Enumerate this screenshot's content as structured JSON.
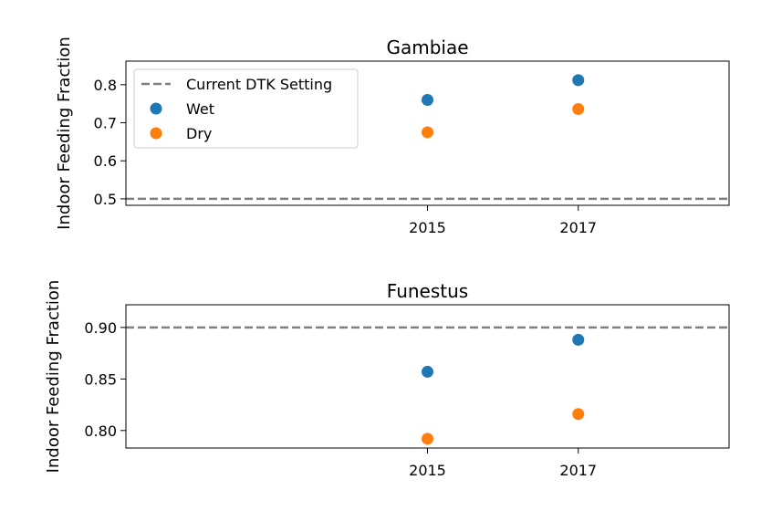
{
  "chart_data": [
    {
      "type": "scatter",
      "title": "Gambiae",
      "xlabel": "",
      "ylabel": "Indoor Feeding Fraction",
      "x_ticks": [
        "2015",
        "2017"
      ],
      "xlim": [
        2011.0,
        2019.0
      ],
      "ylim": [
        0.483,
        0.862
      ],
      "y_ticks": [
        "0.5",
        "0.6",
        "0.7",
        "0.8"
      ],
      "grid": false,
      "legend": {
        "placement": "top-left",
        "entries": [
          "Current DTK Setting",
          "Wet",
          "Dry"
        ]
      },
      "reference_line": {
        "name": "Current DTK Setting",
        "y": 0.5,
        "color": "#808080",
        "style": "dashed"
      },
      "series": [
        {
          "name": "Wet",
          "color": "#1f77b4",
          "x": [
            2015,
            2017
          ],
          "y": [
            0.76,
            0.812
          ]
        },
        {
          "name": "Dry",
          "color": "#ff7f0e",
          "x": [
            2015,
            2017
          ],
          "y": [
            0.675,
            0.736
          ]
        }
      ]
    },
    {
      "type": "scatter",
      "title": "Funestus",
      "xlabel": "",
      "ylabel": "Indoor Feeding Fraction",
      "x_ticks": [
        "2015",
        "2017"
      ],
      "xlim": [
        2011.0,
        2019.0
      ],
      "ylim": [
        0.783,
        0.922
      ],
      "y_ticks": [
        "0.80",
        "0.85",
        "0.90"
      ],
      "grid": false,
      "reference_line": {
        "name": "Current DTK Setting",
        "y": 0.9,
        "color": "#808080",
        "style": "dashed"
      },
      "series": [
        {
          "name": "Wet",
          "color": "#1f77b4",
          "x": [
            2015,
            2017
          ],
          "y": [
            0.857,
            0.888
          ]
        },
        {
          "name": "Dry",
          "color": "#ff7f0e",
          "x": [
            2015,
            2017
          ],
          "y": [
            0.792,
            0.816
          ]
        }
      ]
    }
  ]
}
